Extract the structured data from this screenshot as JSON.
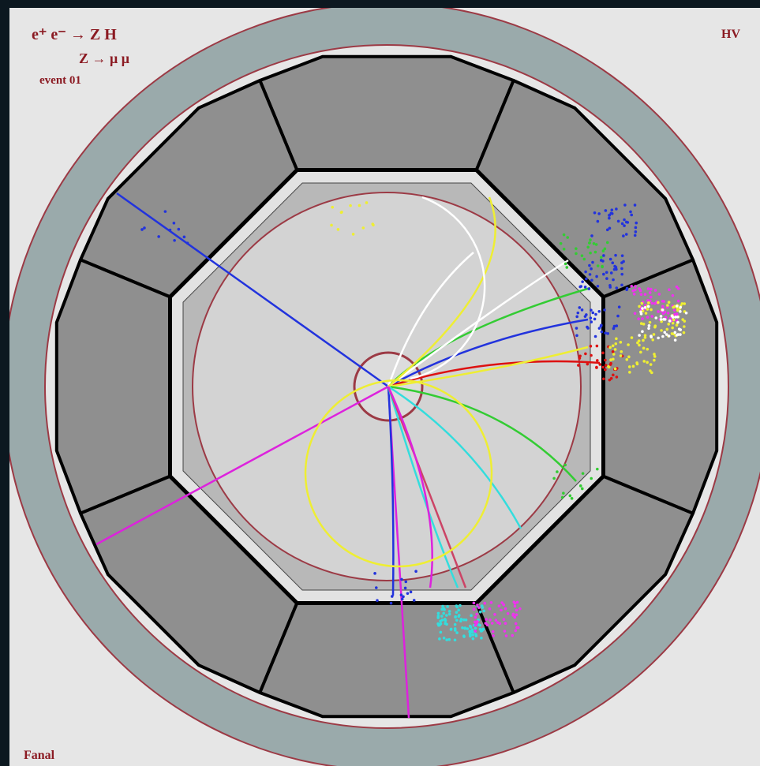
{
  "labels": {
    "process": "e⁺ e⁻ →  Z H",
    "decay": "Z →  μ  μ",
    "event": "event 01",
    "corner": "HV",
    "footer": "Fanal"
  }
}
